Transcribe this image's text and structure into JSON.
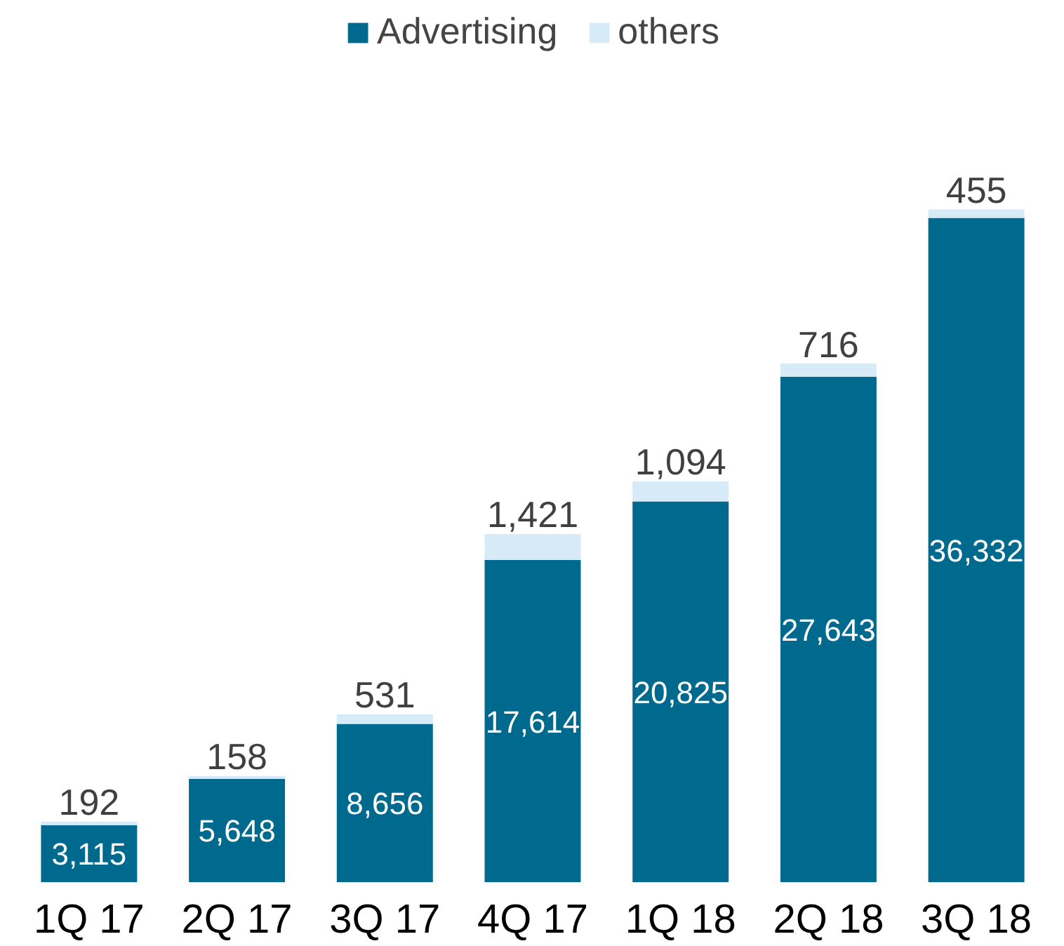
{
  "chart_data": {
    "type": "bar",
    "stacked": true,
    "legend": "top",
    "grid": false,
    "categories": [
      "1Q 17",
      "2Q 17",
      "3Q 17",
      "4Q 17",
      "1Q 18",
      "2Q 18",
      "3Q 18"
    ],
    "series": [
      {
        "name": "Advertising",
        "color": "#006a8e",
        "values": [
          3115,
          5648,
          8656,
          17614,
          20825,
          27643,
          36332
        ],
        "value_labels": [
          "3,115",
          "5,648",
          "8,656",
          "17,614",
          "20,825",
          "27,643",
          "36,332"
        ]
      },
      {
        "name": "others",
        "color": "#d6eaf8",
        "values": [
          192,
          158,
          531,
          1421,
          1094,
          716,
          455
        ],
        "value_labels": [
          "192",
          "158",
          "531",
          "1,421",
          "1,094",
          "716",
          "455"
        ]
      }
    ]
  }
}
